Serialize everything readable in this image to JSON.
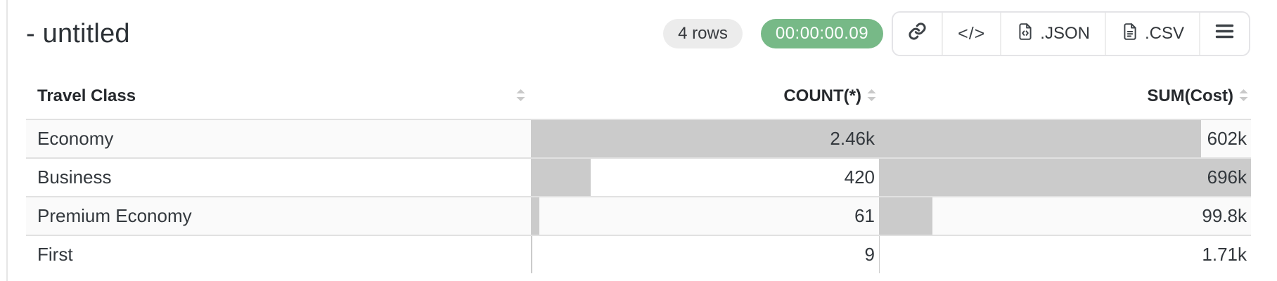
{
  "window": {
    "title": "- untitled"
  },
  "status": {
    "row_count_badge": "4 rows",
    "elapsed_time_badge": "00:00:00.09"
  },
  "toolbar": {
    "link_icon": "link-icon",
    "code_label": "</>",
    "json_label": ".JSON",
    "csv_label": ".CSV",
    "menu_icon": "hamburger-icon"
  },
  "colors": {
    "timer_badge_bg": "#77b987",
    "rows_badge_bg": "#ececec",
    "data_bar": "#cbcbcb",
    "zebra_row": "#fafafa"
  },
  "table": {
    "columns": [
      {
        "label": "Travel Class",
        "align": "left"
      },
      {
        "label": "COUNT(*)",
        "align": "right"
      },
      {
        "label": "SUM(Cost)",
        "align": "right"
      }
    ],
    "rows": [
      {
        "travel_class": "Economy",
        "count": "2.46k",
        "sum": "602k",
        "count_pct": 100,
        "sum_pct": 86.5
      },
      {
        "travel_class": "Business",
        "count": "420",
        "sum": "696k",
        "count_pct": 17.1,
        "sum_pct": 100
      },
      {
        "travel_class": "Premium Economy",
        "count": "61",
        "sum": "99.8k",
        "count_pct": 2.5,
        "sum_pct": 14.3
      },
      {
        "travel_class": "First",
        "count": "9",
        "sum": "1.71k",
        "count_pct": 0.4,
        "sum_pct": 0.25
      }
    ]
  },
  "chart_data": {
    "type": "table",
    "title": "- untitled",
    "columns": [
      "Travel Class",
      "COUNT(*)",
      "SUM(Cost)"
    ],
    "rows_display": [
      [
        "Economy",
        "2.46k",
        "602k"
      ],
      [
        "Business",
        "420",
        "696k"
      ],
      [
        "Premium Economy",
        "61",
        "99.8k"
      ],
      [
        "First",
        "9",
        "1.71k"
      ]
    ],
    "rows_numeric": [
      [
        "Economy",
        2460,
        602000
      ],
      [
        "Business",
        420,
        696000
      ],
      [
        "Premium Economy",
        61,
        99800
      ],
      [
        "First",
        9,
        1710
      ]
    ],
    "bar_encoding": "cell background bar width proportional to column max (COUNT max 2460, SUM max 696000)"
  }
}
